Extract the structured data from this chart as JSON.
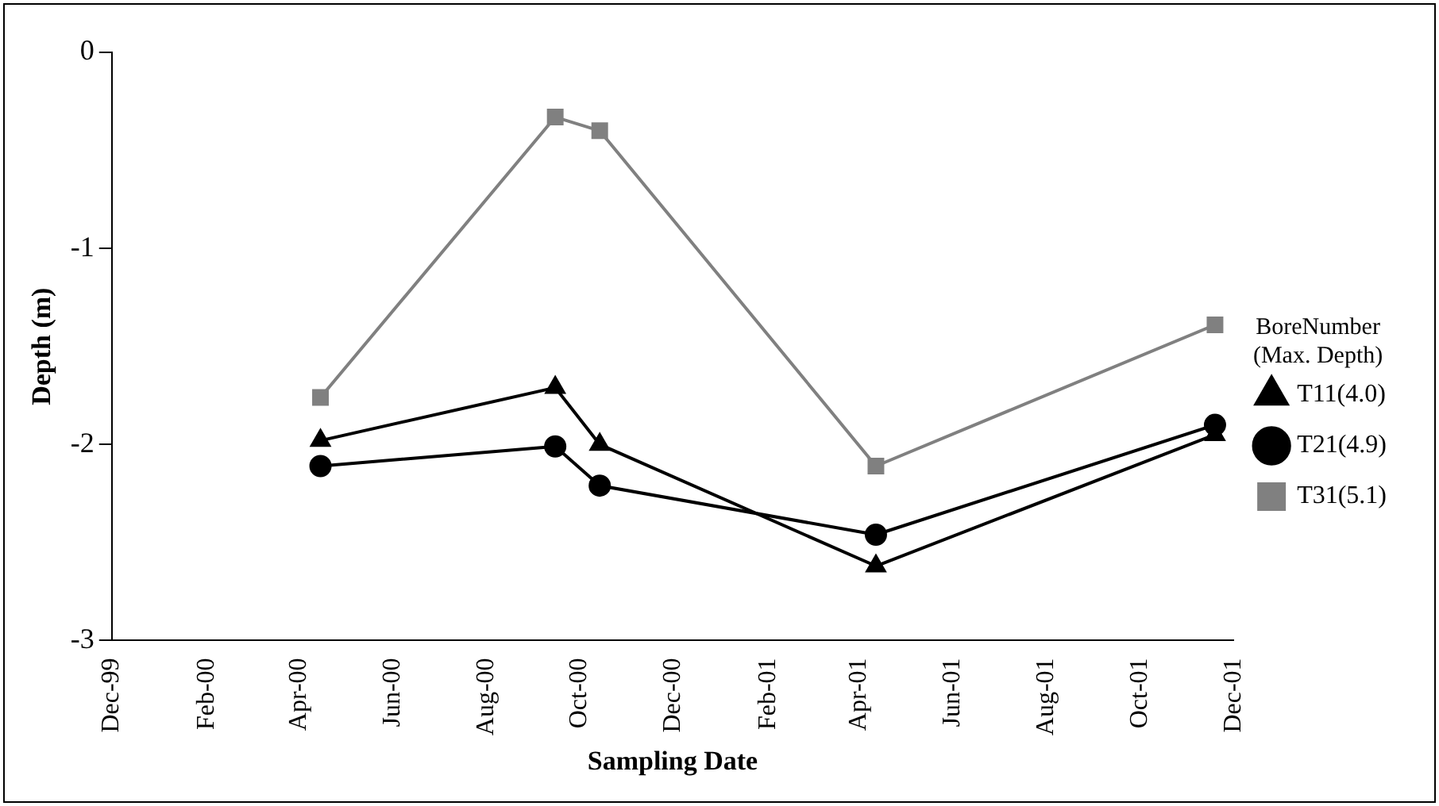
{
  "chart_data": {
    "type": "line",
    "xlabel": "Sampling Date",
    "ylabel": "Depth (m)",
    "legend_title": "BoreNumber (Max. Depth)",
    "legend": "right",
    "grid": false,
    "x": [
      "2000-04-15",
      "2000-09-15",
      "2000-10-14",
      "2001-04-12",
      "2001-11-19"
    ],
    "series": [
      {
        "name": "T11(4.0)",
        "color": "#000000",
        "marker": "triangle",
        "values": [
          -1.98,
          -1.71,
          -2.0,
          -2.62,
          -1.95
        ]
      },
      {
        "name": "T21(4.9)",
        "color": "#000000",
        "marker": "circle",
        "values": [
          -2.11,
          -2.01,
          -2.21,
          -2.46,
          -1.9
        ]
      },
      {
        "name": "T31(5.1)",
        "color": "#808080",
        "marker": "square",
        "values": [
          -1.76,
          -0.33,
          -0.4,
          -2.11,
          -1.39
        ]
      }
    ],
    "xlim": [
      "1999-12-01",
      "2001-12-01"
    ],
    "xticks": [
      {
        "value": "1999-12-01",
        "label": "Dec-99"
      },
      {
        "value": "2000-02-01",
        "label": "Feb-00"
      },
      {
        "value": "2000-04-01",
        "label": "Apr-00"
      },
      {
        "value": "2000-06-01",
        "label": "Jun-00"
      },
      {
        "value": "2000-08-01",
        "label": "Aug-00"
      },
      {
        "value": "2000-10-01",
        "label": "Oct-00"
      },
      {
        "value": "2000-12-01",
        "label": "Dec-00"
      },
      {
        "value": "2001-02-01",
        "label": "Feb-01"
      },
      {
        "value": "2001-04-01",
        "label": "Apr-01"
      },
      {
        "value": "2001-06-01",
        "label": "Jun-01"
      },
      {
        "value": "2001-08-01",
        "label": "Aug-01"
      },
      {
        "value": "2001-10-01",
        "label": "Oct-01"
      },
      {
        "value": "2001-12-01",
        "label": "Dec-01"
      }
    ],
    "ylim": [
      -3,
      0
    ],
    "yticks": [
      -3,
      -2,
      -1,
      0
    ]
  }
}
